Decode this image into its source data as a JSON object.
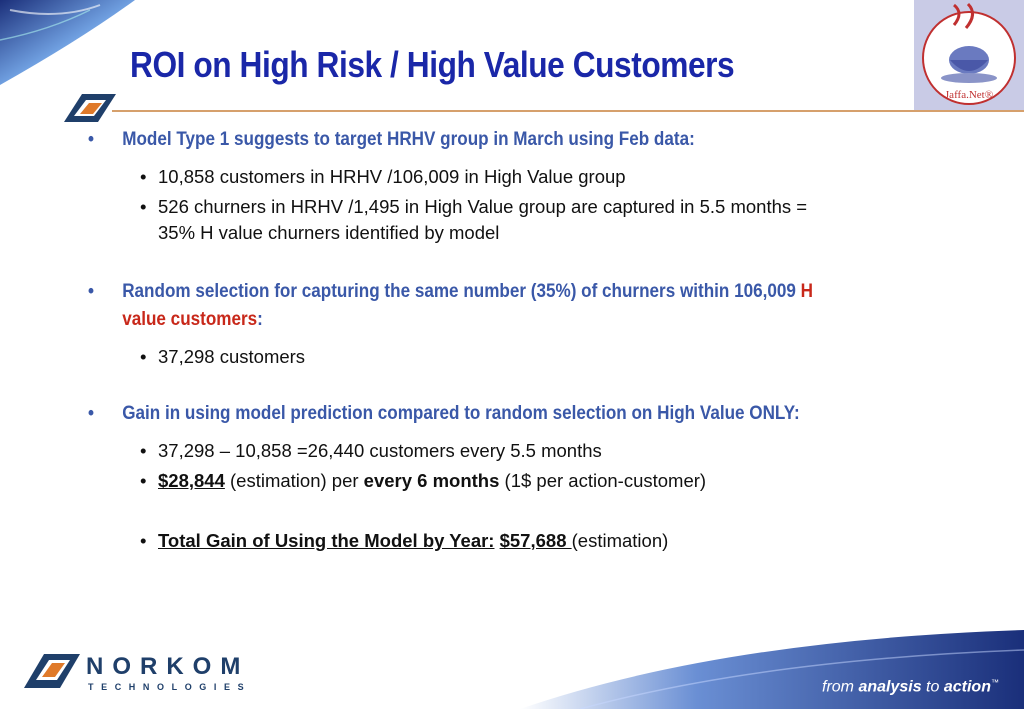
{
  "slide": {
    "title": "ROI  on High Risk / High Value Customers",
    "logo_text": "Jaffa.Net®",
    "company_name": "NORKOM",
    "company_sub": "TECHNOLOGIES",
    "tagline_pre": "from ",
    "tagline_bold": "analysis",
    "tagline_post": " to ",
    "tagline_bold2": "action",
    "tagline_tm": "™"
  },
  "bullets": [
    {
      "text": "Model Type 1 suggests to target HRHV group in March using Feb data:",
      "sub": [
        "10,858 customers in HRHV /106,009 in High Value group",
        "526 churners in HRHV /1,495 in High Value group are captured in 5.5 months  = 35% H value churners identified by model"
      ]
    },
    {
      "text_pre": "Random selection for capturing the same number (35%) of churners within 106,009 ",
      "text_hl": "H value customers",
      "text_post": ":",
      "sub": [
        "37,298 customers"
      ]
    },
    {
      "text": "Gain in using model prediction compared to random selection on High Value ONLY:",
      "sub0": "37,298 – 10,858 =26,440 customers every 5.5 months",
      "sub1": {
        "amount": "$28,844",
        "mid": " (estimation) per ",
        "bold": "every 6 months",
        "tail": " (1$ per action-customer)"
      },
      "total": {
        "label": "Total Gain of Using the Model by Year:",
        "amount": "$57,688 ",
        "tail": "(estimation)"
      }
    }
  ],
  "colors": {
    "title": "#1a27a8",
    "bullet": "#3a58a8",
    "highlight": "#c8281a",
    "rule": "#d6a06c"
  }
}
